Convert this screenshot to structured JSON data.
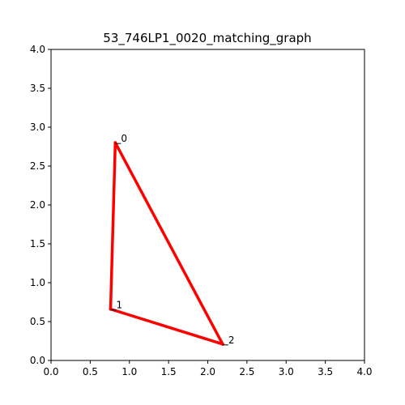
{
  "chart_data": {
    "type": "line",
    "title": "53_746LP1_0020_matching_graph",
    "xlabel": "",
    "ylabel": "",
    "xlim": [
      0,
      4
    ],
    "ylim": [
      0,
      4
    ],
    "grid": false,
    "x_ticks": [
      "0.0",
      "0.5",
      "1.0",
      "1.5",
      "2.0",
      "2.5",
      "3.0",
      "3.5",
      "4.0"
    ],
    "y_ticks": [
      "0.0",
      "0.5",
      "1.0",
      "1.5",
      "2.0",
      "2.5",
      "3.0",
      "3.5",
      "4.0"
    ],
    "edge_color": "#ff0000",
    "nodes": [
      {
        "label": "0",
        "x": 0.82,
        "y": 2.8
      },
      {
        "label": "1",
        "x": 0.76,
        "y": 0.66
      },
      {
        "label": "2",
        "x": 2.19,
        "y": 0.21
      }
    ],
    "edges": [
      [
        0,
        1
      ],
      [
        1,
        2
      ],
      [
        2,
        0
      ]
    ]
  }
}
